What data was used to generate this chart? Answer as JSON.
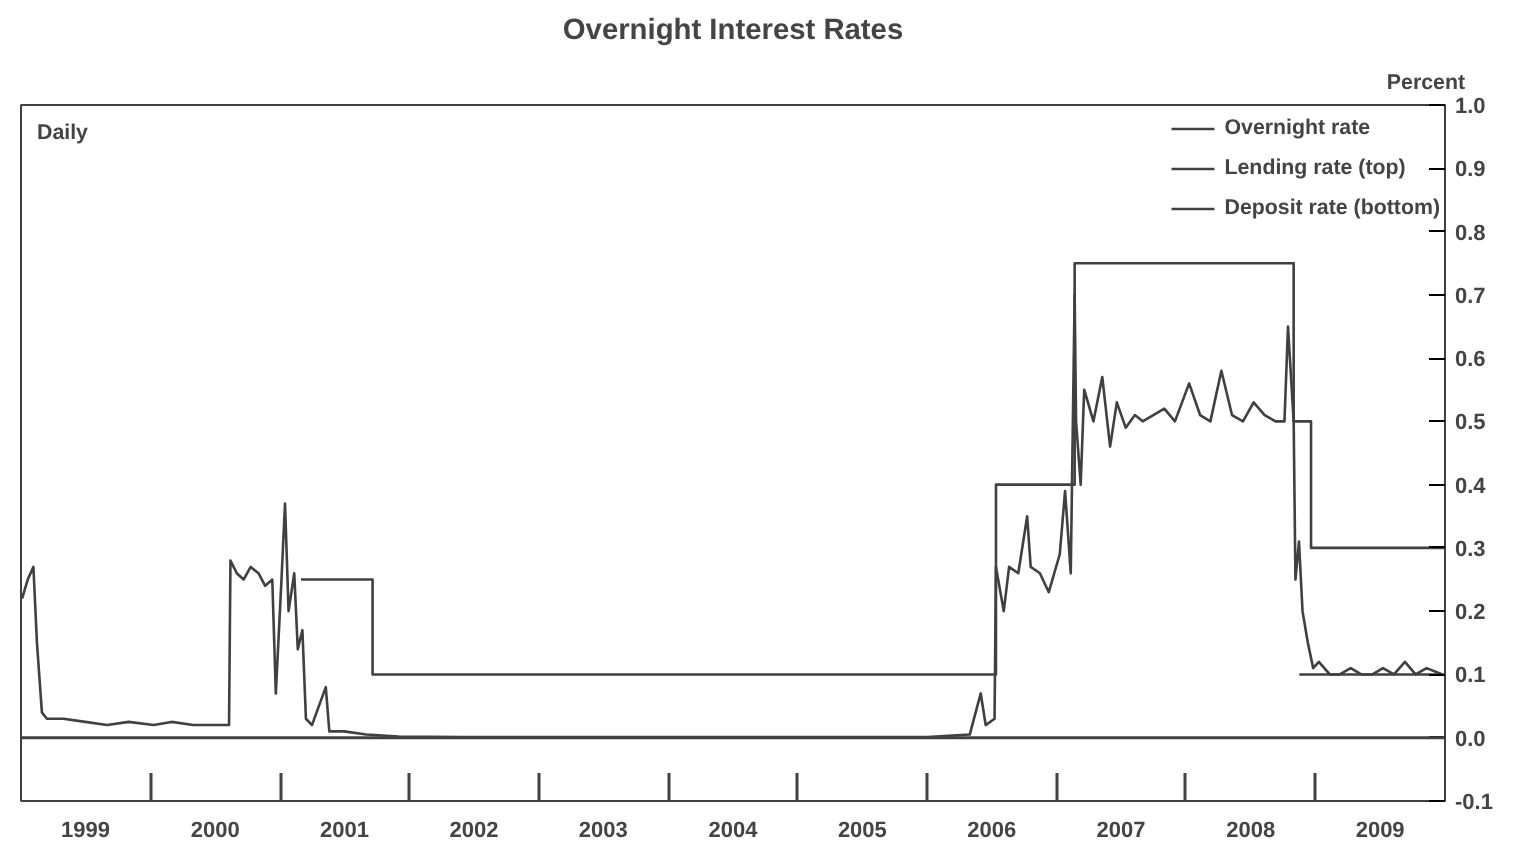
{
  "chart_data": {
    "type": "line",
    "title": "Overnight Interest Rates",
    "ylabel": "Percent",
    "annotations": [
      "Daily"
    ],
    "xlim": [
      "1999-01-01",
      "2010-01-01"
    ],
    "xticks": [
      {
        "value": "1999-07-02",
        "label": "1999"
      },
      {
        "value": "2000-01-01",
        "label": null
      },
      {
        "value": "2000-07-02",
        "label": "2000"
      },
      {
        "value": "2001-01-01",
        "label": null
      },
      {
        "value": "2001-07-02",
        "label": "2001"
      },
      {
        "value": "2002-01-01",
        "label": null
      },
      {
        "value": "2002-07-02",
        "label": "2002"
      },
      {
        "value": "2003-01-01",
        "label": null
      },
      {
        "value": "2003-07-02",
        "label": "2003"
      },
      {
        "value": "2004-01-01",
        "label": null
      },
      {
        "value": "2004-07-02",
        "label": "2004"
      },
      {
        "value": "2005-01-01",
        "label": null
      },
      {
        "value": "2005-07-02",
        "label": "2005"
      },
      {
        "value": "2006-01-01",
        "label": null
      },
      {
        "value": "2006-07-02",
        "label": "2006"
      },
      {
        "value": "2007-01-01",
        "label": null
      },
      {
        "value": "2007-07-02",
        "label": "2007"
      },
      {
        "value": "2008-01-01",
        "label": null
      },
      {
        "value": "2008-07-02",
        "label": "2008"
      },
      {
        "value": "2009-01-01",
        "label": null
      },
      {
        "value": "2009-07-02",
        "label": "2009"
      }
    ],
    "ylim": [
      -0.1,
      1.0
    ],
    "yticks": [
      -0.1,
      {
        "value": 0,
        "label": "0.0"
      },
      0.1,
      0.2,
      0.3,
      0.4,
      0.5,
      0.6,
      0.7,
      0.8,
      0.9,
      {
        "value": 1,
        "label": "1.0"
      }
    ],
    "grid": false,
    "legend": "top right",
    "ref_lines": [
      {
        "axis": "y",
        "value": 0,
        "color": "#404040"
      }
    ],
    "series": [
      {
        "name": "Overnight rate",
        "color": "#404040",
        "x": [
          "1999-01-04",
          "1999-01-20",
          "1999-02-05",
          "1999-02-15",
          "1999-03-01",
          "1999-03-15",
          "1999-05-01",
          "1999-07-01",
          "1999-09-01",
          "1999-11-01",
          "2000-01-10",
          "2000-03-01",
          "2000-05-01",
          "2000-07-01",
          "2000-08-10",
          "2000-08-14",
          "2000-09-01",
          "2000-09-20",
          "2000-10-10",
          "2000-11-01",
          "2000-11-20",
          "2000-12-10",
          "2000-12-20",
          "2001-01-05",
          "2001-01-15",
          "2001-01-25",
          "2001-02-10",
          "2001-02-20",
          "2001-03-05",
          "2001-03-15",
          "2001-04-01",
          "2001-05-10",
          "2001-05-20",
          "2001-07-01",
          "2001-09-01",
          "2001-12-01",
          "2002-06-01",
          "2003-01-01",
          "2004-01-01",
          "2005-01-01",
          "2006-01-01",
          "2006-05-01",
          "2006-06-01",
          "2006-06-15",
          "2006-07-10",
          "2006-07-14",
          "2006-08-05",
          "2006-08-20",
          "2006-09-15",
          "2006-10-10",
          "2006-10-20",
          "2006-11-15",
          "2006-12-10",
          "2007-01-10",
          "2007-01-25",
          "2007-02-10",
          "2007-02-21",
          "2007-02-25",
          "2007-03-10",
          "2007-03-20",
          "2007-04-15",
          "2007-05-10",
          "2007-06-01",
          "2007-06-20",
          "2007-07-15",
          "2007-08-10",
          "2007-09-01",
          "2007-10-01",
          "2007-11-01",
          "2007-12-01",
          "2008-01-10",
          "2008-02-10",
          "2008-03-10",
          "2008-04-10",
          "2008-05-10",
          "2008-06-10",
          "2008-07-10",
          "2008-08-10",
          "2008-09-10",
          "2008-10-05",
          "2008-10-15",
          "2008-10-31",
          "2008-11-05",
          "2008-11-15",
          "2008-11-25",
          "2008-12-10",
          "2008-12-25",
          "2009-01-10",
          "2009-02-10",
          "2009-03-10",
          "2009-04-10",
          "2009-05-10",
          "2009-06-10",
          "2009-07-10",
          "2009-08-10",
          "2009-09-10",
          "2009-10-10",
          "2009-11-10",
          "2009-12-25"
        ],
        "values": [
          0.22,
          0.25,
          0.27,
          0.15,
          0.04,
          0.03,
          0.03,
          0.025,
          0.02,
          0.025,
          0.02,
          0.025,
          0.02,
          0.02,
          0.02,
          0.28,
          0.26,
          0.25,
          0.27,
          0.26,
          0.24,
          0.25,
          0.07,
          0.25,
          0.37,
          0.2,
          0.26,
          0.14,
          0.17,
          0.03,
          0.02,
          0.08,
          0.01,
          0.01,
          0.005,
          0.002,
          0.001,
          0.001,
          0.001,
          0.001,
          0.001,
          0.005,
          0.07,
          0.02,
          0.03,
          0.27,
          0.2,
          0.27,
          0.26,
          0.35,
          0.27,
          0.26,
          0.23,
          0.29,
          0.39,
          0.26,
          0.7,
          0.5,
          0.4,
          0.55,
          0.5,
          0.57,
          0.46,
          0.53,
          0.49,
          0.51,
          0.5,
          0.51,
          0.52,
          0.5,
          0.56,
          0.51,
          0.5,
          0.58,
          0.51,
          0.5,
          0.53,
          0.51,
          0.5,
          0.5,
          0.65,
          0.5,
          0.25,
          0.31,
          0.2,
          0.15,
          0.11,
          0.12,
          0.1,
          0.1,
          0.11,
          0.1,
          0.1,
          0.11,
          0.1,
          0.12,
          0.1,
          0.11,
          0.1
        ]
      },
      {
        "name": "Lending rate (top)",
        "color": "#404040",
        "type": "step",
        "x": [
          "2001-03-01",
          "2001-09-19",
          "2006-07-14",
          "2007-02-21",
          "2008-10-31",
          "2008-12-19",
          "2009-12-31"
        ],
        "values": [
          0.25,
          0.1,
          0.4,
          0.75,
          0.5,
          0.3,
          0.3
        ]
      },
      {
        "name": "Deposit rate (bottom)",
        "color": "#404040",
        "type": "line",
        "x": [
          "2008-11-16",
          "2009-12-31"
        ],
        "values": [
          0.1,
          0.1
        ]
      }
    ]
  }
}
